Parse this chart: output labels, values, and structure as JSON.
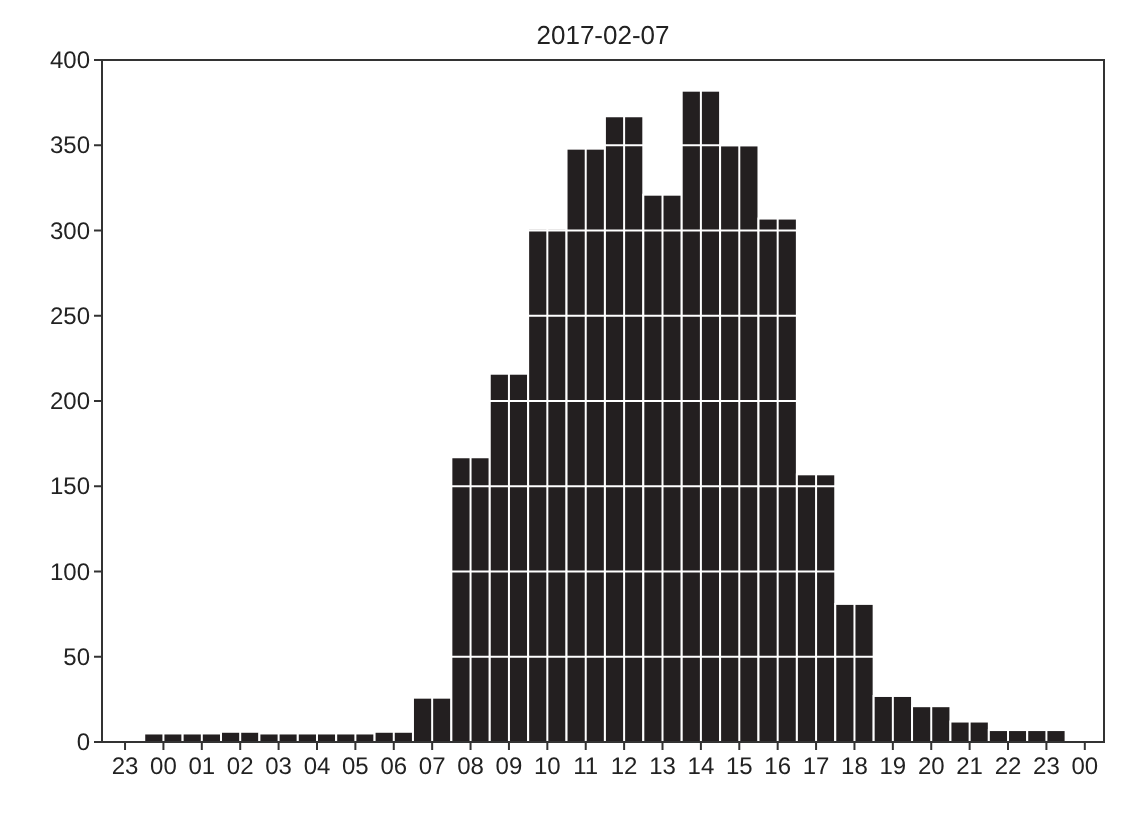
{
  "chart_data": {
    "type": "histogram",
    "title": "2017-02-07",
    "bins": [
      "2017-02-06T23:30",
      "2017-02-07T00:30",
      "2017-02-07T01:30",
      "2017-02-07T02:30",
      "2017-02-07T03:30",
      "2017-02-07T04:30",
      "2017-02-07T05:30",
      "2017-02-07T06:30",
      "2017-02-07T07:30",
      "2017-02-07T08:30",
      "2017-02-07T09:30",
      "2017-02-07T10:30",
      "2017-02-07T11:30",
      "2017-02-07T12:30",
      "2017-02-07T13:30",
      "2017-02-07T14:30",
      "2017-02-07T15:30",
      "2017-02-07T16:30",
      "2017-02-07T17:30",
      "2017-02-07T18:30",
      "2017-02-07T19:30",
      "2017-02-07T20:30",
      "2017-02-07T21:30",
      "2017-02-07T22:30",
      "2017-02-07T23:30"
    ],
    "values": [
      5,
      5,
      6,
      5,
      5,
      5,
      6,
      26,
      167,
      216,
      301,
      348,
      367,
      321,
      382,
      350,
      307,
      157,
      81,
      27,
      21,
      12,
      7,
      7
    ],
    "color": "#231f20",
    "xlim": [
      "2017-02-06T22:24",
      "2017-02-08T00:30"
    ],
    "xticks": [
      {
        "value": "2017-02-06T23:00",
        "label": "23"
      },
      {
        "value": "2017-02-07T00:00",
        "label": "00"
      },
      {
        "value": "2017-02-07T01:00",
        "label": "01"
      },
      {
        "value": "2017-02-07T02:00",
        "label": "02"
      },
      {
        "value": "2017-02-07T03:00",
        "label": "03"
      },
      {
        "value": "2017-02-07T04:00",
        "label": "04"
      },
      {
        "value": "2017-02-07T05:00",
        "label": "05"
      },
      {
        "value": "2017-02-07T06:00",
        "label": "06"
      },
      {
        "value": "2017-02-07T07:00",
        "label": "07"
      },
      {
        "value": "2017-02-07T08:00",
        "label": "08"
      },
      {
        "value": "2017-02-07T09:00",
        "label": "09"
      },
      {
        "value": "2017-02-07T10:00",
        "label": "10"
      },
      {
        "value": "2017-02-07T11:00",
        "label": "11"
      },
      {
        "value": "2017-02-07T12:00",
        "label": "12"
      },
      {
        "value": "2017-02-07T13:00",
        "label": "13"
      },
      {
        "value": "2017-02-07T14:00",
        "label": "14"
      },
      {
        "value": "2017-02-07T15:00",
        "label": "15"
      },
      {
        "value": "2017-02-07T16:00",
        "label": "16"
      },
      {
        "value": "2017-02-07T17:00",
        "label": "17"
      },
      {
        "value": "2017-02-07T18:00",
        "label": "18"
      },
      {
        "value": "2017-02-07T19:00",
        "label": "19"
      },
      {
        "value": "2017-02-07T20:00",
        "label": "20"
      },
      {
        "value": "2017-02-07T21:00",
        "label": "21"
      },
      {
        "value": "2017-02-07T22:00",
        "label": "22"
      },
      {
        "value": "2017-02-07T23:00",
        "label": "23"
      },
      {
        "value": "2017-02-08T00:00",
        "label": "00"
      }
    ],
    "ylim": [
      0,
      400
    ],
    "yticks": [
      0,
      50,
      100,
      150,
      200,
      250,
      300,
      350,
      400
    ],
    "grid": true
  }
}
